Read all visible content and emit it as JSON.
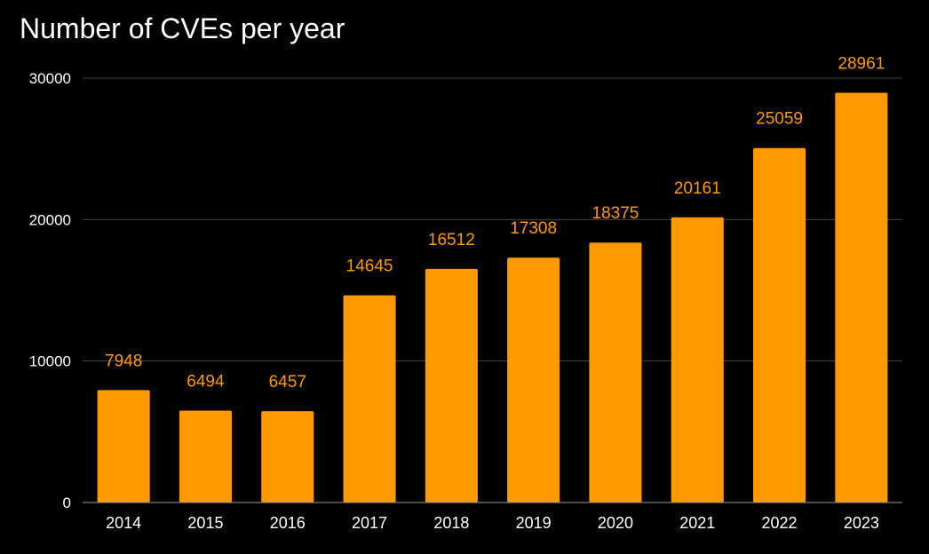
{
  "chart_data": {
    "type": "bar",
    "title": "Number of CVEs per year",
    "xlabel": "",
    "ylabel": "",
    "categories": [
      "2014",
      "2015",
      "2016",
      "2017",
      "2018",
      "2019",
      "2020",
      "2021",
      "2022",
      "2023"
    ],
    "values": [
      7948,
      6494,
      6457,
      14645,
      16512,
      17308,
      18375,
      20161,
      25059,
      28961
    ],
    "value_labels": [
      "7948",
      "6494",
      "6457",
      "14645",
      "16512",
      "17308",
      "18375",
      "20161",
      "25059",
      "28961"
    ],
    "ylim": [
      0,
      30000
    ],
    "yticks": [
      0,
      10000,
      20000,
      30000
    ],
    "ytick_labels": [
      "0",
      "10000",
      "20000",
      "30000"
    ],
    "grid": true,
    "legend": "none",
    "colors": {
      "background": "#000000",
      "bar": "#ff9900",
      "data_label": "#ff9900",
      "text": "#ffffff",
      "gridline": "#444444",
      "axis_line": "#999999"
    }
  }
}
